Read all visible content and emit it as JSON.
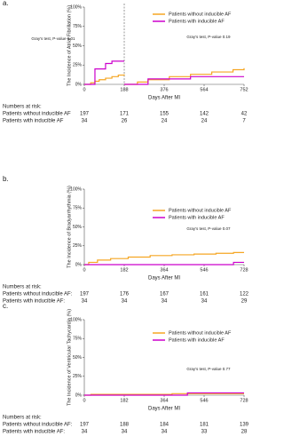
{
  "chart_data": [
    {
      "type": "line",
      "label": "a.",
      "ylabel": "The Incidence of Atrial Fibrillation (%)",
      "xlabel": "Days After MI",
      "x": [
        0,
        30,
        50,
        70,
        100,
        130,
        160,
        188,
        188,
        188,
        250,
        300,
        400,
        500,
        600,
        700,
        752
      ],
      "series": [
        {
          "name": "Patients without inducible AF",
          "color": "#f5a623",
          "values": [
            0,
            2,
            4,
            6,
            8,
            10,
            12,
            13,
            null,
            0,
            3,
            6,
            10,
            13,
            16,
            19,
            21
          ]
        },
        {
          "name": "Patients with inducible AF",
          "color": "#cc00cc",
          "values": [
            0,
            0,
            20,
            20,
            27,
            30,
            30,
            30,
            null,
            0,
            0,
            7,
            7,
            10,
            10,
            10,
            10
          ]
        }
      ],
      "xlim": [
        0,
        752
      ],
      "xticks": [
        0,
        188,
        376,
        564,
        752
      ],
      "ylim": [
        0,
        100
      ],
      "yticks": [
        {
          "value": 0,
          "label": "0%"
        },
        {
          "value": 25,
          "label": "25%"
        },
        {
          "value": 50,
          "label": "50%"
        },
        {
          "value": 75,
          "label": "75%"
        },
        {
          "value": 100,
          "label": "100%"
        }
      ],
      "vlines": [
        188
      ],
      "annotations": [
        "Gray's test, P-value 0.01",
        "Gray's test, P-value 0.19"
      ],
      "risk_table": {
        "title": "Numbers at risk:",
        "rows": [
          {
            "name": "Patients without inducible AF",
            "values": [
              "197",
              "171",
              "155",
              "142",
              "42"
            ]
          },
          {
            "name": "Patients with inducible AF",
            "values": [
              "34",
              "26",
              "24",
              "24",
              "7"
            ]
          }
        ]
      }
    },
    {
      "type": "line",
      "label": "b.",
      "ylabel": "The Incidence of Bradyarrhythmia (%)",
      "xlabel": "Days After MI",
      "x": [
        0,
        20,
        60,
        120,
        200,
        300,
        400,
        500,
        600,
        680,
        728
      ],
      "series": [
        {
          "name": "Patients without inducible AF",
          "color": "#f5a623",
          "values": [
            0,
            3,
            6,
            8,
            10,
            12,
            13,
            14,
            15,
            16,
            16
          ]
        },
        {
          "name": "Patients with inducible AF",
          "color": "#cc00cc",
          "values": [
            0,
            0,
            0,
            0,
            0,
            0,
            0,
            0,
            0,
            3,
            3
          ]
        }
      ],
      "xlim": [
        0,
        728
      ],
      "xticks": [
        0,
        182,
        364,
        546,
        728
      ],
      "ylim": [
        0,
        100
      ],
      "yticks": [
        {
          "value": 0,
          "label": "0%"
        },
        {
          "value": 25,
          "label": "25%"
        },
        {
          "value": 50,
          "label": "50%"
        },
        {
          "value": 75,
          "label": "75%"
        },
        {
          "value": 100,
          "label": "100%"
        }
      ],
      "annotations": [
        "Gray's test, P-value 0.07"
      ],
      "risk_table": {
        "title": "Numbers at risk:",
        "rows": [
          {
            "name": "Patients without inducible AF:",
            "values": [
              "197",
              "176",
              "167",
              "161",
              "122"
            ]
          },
          {
            "name": "Patients with inducible AF:",
            "values": [
              "34",
              "34",
              "34",
              "34",
              "29"
            ]
          }
        ]
      }
    },
    {
      "type": "line",
      "label": "c.",
      "ylabel": "The Incidence of Ventricular Tachycardia (%)",
      "xlabel": "Days After MI",
      "x": [
        0,
        30,
        200,
        400,
        470,
        600,
        728
      ],
      "series": [
        {
          "name": "Patients without inducible AF",
          "color": "#f5a623",
          "values": [
            0,
            1,
            1,
            2,
            2,
            2,
            2
          ]
        },
        {
          "name": "Patients with inducible AF",
          "color": "#cc00cc",
          "values": [
            0,
            0,
            0,
            0,
            3,
            3,
            3
          ]
        }
      ],
      "xlim": [
        0,
        728
      ],
      "xticks": [
        0,
        182,
        364,
        546,
        728
      ],
      "ylim": [
        0,
        100
      ],
      "yticks": [
        {
          "value": 0,
          "label": "0%"
        },
        {
          "value": 25,
          "label": "25%"
        },
        {
          "value": 50,
          "label": "50%"
        },
        {
          "value": 75,
          "label": "75%"
        },
        {
          "value": 100,
          "label": "100%"
        }
      ],
      "annotations": [
        "Gray's test, P-value 0.77"
      ],
      "risk_table": {
        "title": "Numbers at risk:",
        "rows": [
          {
            "name": "Patients without inducible AF:",
            "values": [
              "197",
              "188",
              "184",
              "181",
              "139"
            ]
          },
          {
            "name": "Patients with inducible AF:",
            "values": [
              "34",
              "34",
              "34",
              "33",
              "28"
            ]
          }
        ]
      }
    }
  ]
}
